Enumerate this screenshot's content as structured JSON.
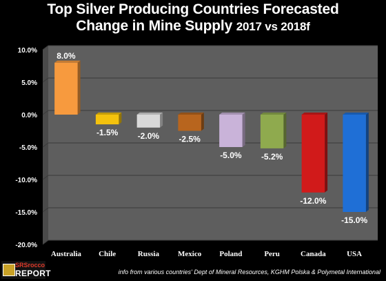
{
  "header": {
    "title_line1": "Top Silver Producing Countries Forecasted",
    "title_line2_main": "Change in Mine Supply",
    "title_line2_small": "2017 vs 2018f"
  },
  "chart_data": {
    "type": "bar",
    "categories": [
      "Australia",
      "Chile",
      "Russia",
      "Mexico",
      "Poland",
      "Peru",
      "Canada",
      "USA"
    ],
    "values": [
      8.0,
      -1.5,
      -2.0,
      -2.5,
      -5.0,
      -5.2,
      -12.0,
      -15.0
    ],
    "value_labels": [
      "8.0%",
      "-1.5%",
      "-2.0%",
      "-2.5%",
      "-5.0%",
      "-5.2%",
      "-12.0%",
      "-15.0%"
    ],
    "colors": [
      "#f79a3e",
      "#f4c20d",
      "#d9d9d9",
      "#b8651e",
      "#c9b3d9",
      "#8faa4e",
      "#d11a1a",
      "#1f6fd6"
    ],
    "ylim": [
      -20,
      10
    ],
    "yticks": [
      10,
      5,
      0,
      -5,
      -10,
      -15,
      -20
    ],
    "ytick_labels": [
      "10.0%",
      "5.0%",
      "0.0%",
      "-5.0%",
      "-10.0%",
      "-15.0%",
      "-20.0%"
    ],
    "grid": true,
    "plot_background": "#5e5e5e",
    "title": "Top Silver Producing Countries Forecasted Change in Mine Supply 2017 vs 2018f"
  },
  "footer": {
    "source_note": "info from various countries' Dept of Mineral Resources, KGHM Polska & Polymetal International"
  },
  "logo": {
    "line1": "SRSrocco",
    "line2": "REPORT"
  }
}
